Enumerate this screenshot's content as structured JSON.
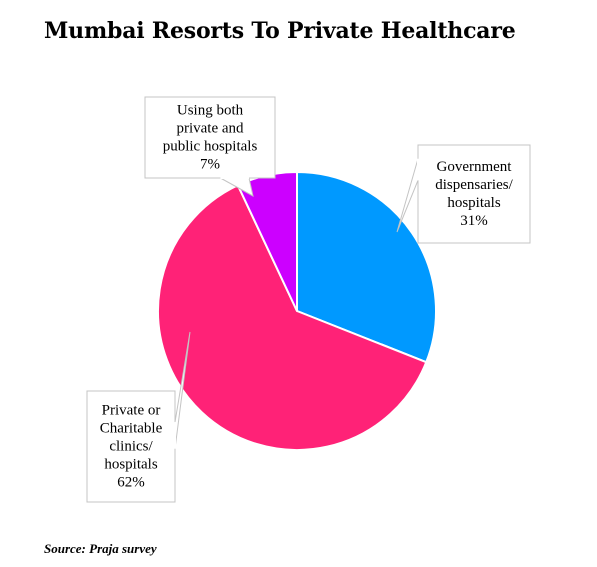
{
  "chart_data": {
    "type": "pie",
    "title": "Mumbai Resorts To Private Healthcare",
    "source": "Source: Praja survey",
    "slices": [
      {
        "name": "Government dispensaries/ hospitals",
        "lines": [
          "Government",
          "dispensaries/",
          "hospitals",
          "31%"
        ],
        "value": 31,
        "color": "#0099ff"
      },
      {
        "name": "Private or Charitable clinics/ hospitals",
        "lines": [
          "Private or",
          "Charitable",
          "clinics/",
          "hospitals",
          "62%"
        ],
        "value": 62,
        "color": "#ff2277"
      },
      {
        "name": "Using both private and public hospitals",
        "lines": [
          "Using both",
          "private and",
          "public hospitals",
          "7%"
        ],
        "value": 7,
        "color": "#cc00ff"
      }
    ]
  }
}
